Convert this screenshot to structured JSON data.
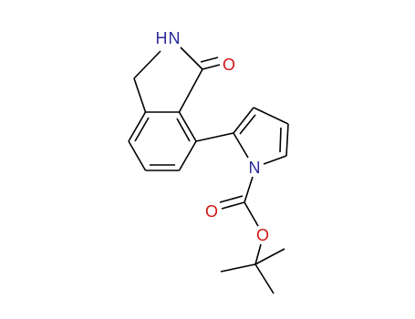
{
  "atoms": [
    {
      "label": "H"
    },
    {
      "label": "N"
    },
    {
      "label": "O"
    },
    {
      "label": "N"
    },
    {
      "label": "O"
    },
    {
      "label": "O"
    }
  ]
}
